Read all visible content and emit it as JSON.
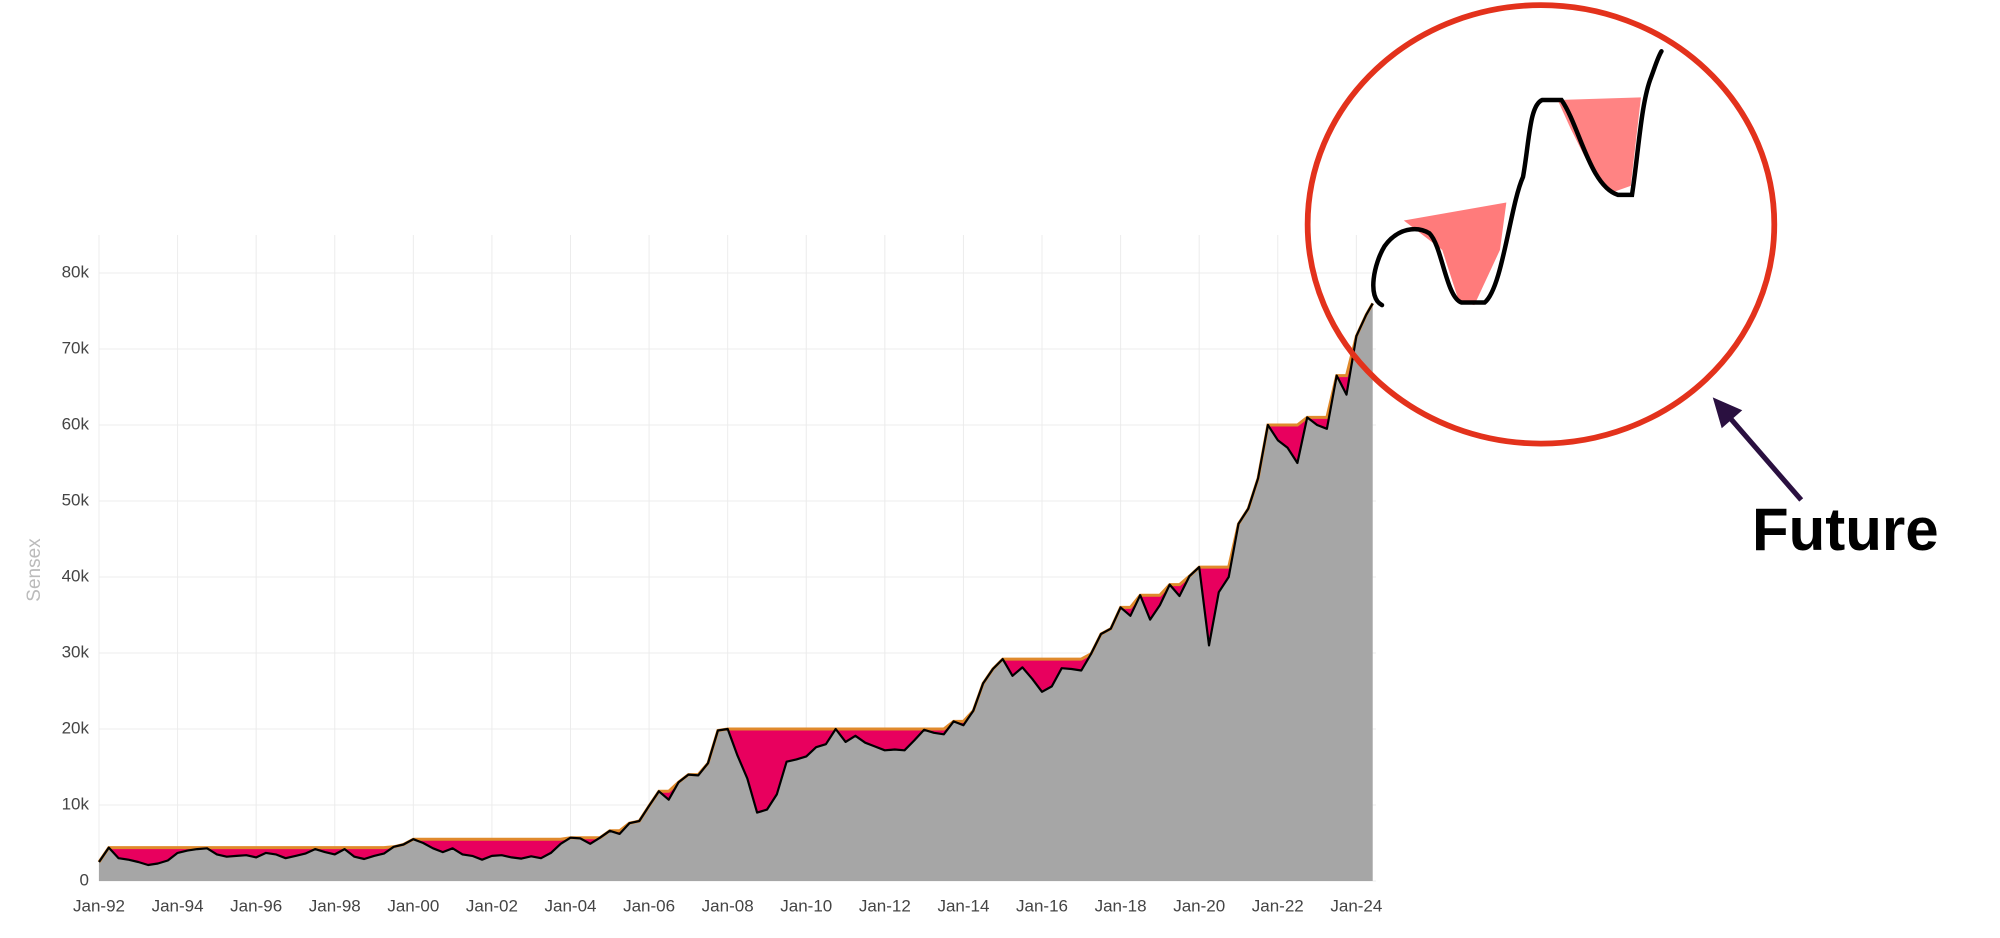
{
  "chart_data": {
    "type": "drawdown-area",
    "ylabel": "Sensex",
    "annotation": "Future",
    "x": [
      "1992-01",
      "1992-04",
      "1992-07",
      "1992-10",
      "1993-01",
      "1993-04",
      "1993-07",
      "1993-10",
      "1994-01",
      "1994-04",
      "1994-07",
      "1994-10",
      "1995-01",
      "1995-04",
      "1995-07",
      "1995-10",
      "1996-01",
      "1996-04",
      "1996-07",
      "1996-10",
      "1997-01",
      "1997-04",
      "1997-07",
      "1997-10",
      "1998-01",
      "1998-04",
      "1998-07",
      "1998-10",
      "1999-01",
      "1999-04",
      "1999-07",
      "1999-10",
      "2000-01",
      "2000-04",
      "2000-07",
      "2000-10",
      "2001-01",
      "2001-04",
      "2001-07",
      "2001-10",
      "2002-01",
      "2002-04",
      "2002-07",
      "2002-10",
      "2003-01",
      "2003-04",
      "2003-07",
      "2003-10",
      "2004-01",
      "2004-04",
      "2004-07",
      "2004-10",
      "2005-01",
      "2005-04",
      "2005-07",
      "2005-10",
      "2006-01",
      "2006-04",
      "2006-07",
      "2006-10",
      "2007-01",
      "2007-04",
      "2007-07",
      "2007-10",
      "2008-01",
      "2008-04",
      "2008-07",
      "2008-10",
      "2009-01",
      "2009-04",
      "2009-07",
      "2009-10",
      "2010-01",
      "2010-04",
      "2010-07",
      "2010-10",
      "2011-01",
      "2011-04",
      "2011-07",
      "2011-10",
      "2012-01",
      "2012-04",
      "2012-07",
      "2012-10",
      "2013-01",
      "2013-04",
      "2013-07",
      "2013-10",
      "2014-01",
      "2014-04",
      "2014-07",
      "2014-10",
      "2015-01",
      "2015-04",
      "2015-07",
      "2015-10",
      "2016-01",
      "2016-04",
      "2016-07",
      "2016-10",
      "2017-01",
      "2017-04",
      "2017-07",
      "2017-10",
      "2018-01",
      "2018-04",
      "2018-07",
      "2018-10",
      "2019-01",
      "2019-04",
      "2019-07",
      "2019-10",
      "2020-01",
      "2020-04",
      "2020-07",
      "2020-10",
      "2021-01",
      "2021-04",
      "2021-07",
      "2021-10",
      "2022-01",
      "2022-04",
      "2022-07",
      "2022-10",
      "2023-01",
      "2023-04",
      "2023-07",
      "2023-10",
      "2024-01",
      "2024-04",
      "2024-06"
    ],
    "series": [
      {
        "color": "#000000",
        "fill": "#a6a6a6",
        "values": [
          2500,
          4400,
          3000,
          2800,
          2500,
          2100,
          2300,
          2700,
          3700,
          4000,
          4200,
          4300,
          3500,
          3200,
          3300,
          3400,
          3100,
          3700,
          3500,
          3000,
          3300,
          3600,
          4200,
          3800,
          3500,
          4200,
          3200,
          2900,
          3300,
          3600,
          4500,
          4800,
          5500,
          5000,
          4300,
          3800,
          4300,
          3500,
          3300,
          2800,
          3300,
          3400,
          3100,
          2950,
          3250,
          3000,
          3700,
          4900,
          5700,
          5600,
          4900,
          5700,
          6600,
          6200,
          7600,
          7900,
          9900,
          11800,
          10700,
          13000,
          14000,
          13900,
          15500,
          19800,
          20000,
          16500,
          13500,
          9000,
          9400,
          11400,
          15700,
          16000,
          16400,
          17600,
          18000,
          20000,
          18300,
          19100,
          18200,
          17700,
          17200,
          17300,
          17200,
          18500,
          19900,
          19500,
          19300,
          21000,
          20500,
          22400,
          26000,
          27900,
          29200,
          27000,
          28100,
          26600,
          24900,
          25600,
          28000,
          27900,
          27700,
          29900,
          32500,
          33200,
          36000,
          34900,
          37600,
          34400,
          36300,
          39000,
          37500,
          40100,
          41300,
          31000,
          38000,
          40000,
          47000,
          49000,
          53000,
          60000,
          58000,
          57000,
          55000,
          61000,
          60000,
          59500,
          66500,
          64000,
          71700,
          74500,
          76000
        ]
      },
      {
        "color": "#e08a2c",
        "fill": "#e8005e",
        "values": [
          2500,
          4400,
          4400,
          4400,
          4400,
          4400,
          4400,
          4400,
          4400,
          4400,
          4400,
          4400,
          4400,
          4400,
          4400,
          4400,
          4400,
          4400,
          4400,
          4400,
          4400,
          4400,
          4400,
          4400,
          4400,
          4400,
          4400,
          4400,
          4400,
          4400,
          4500,
          4800,
          5500,
          5500,
          5500,
          5500,
          5500,
          5500,
          5500,
          5500,
          5500,
          5500,
          5500,
          5500,
          5500,
          5500,
          5500,
          5500,
          5700,
          5700,
          5700,
          5700,
          6600,
          6600,
          7600,
          7900,
          9900,
          11800,
          11800,
          13000,
          14000,
          14000,
          15500,
          19800,
          20000,
          20000,
          20000,
          20000,
          20000,
          20000,
          20000,
          20000,
          20000,
          20000,
          20000,
          20000,
          20000,
          20000,
          20000,
          20000,
          20000,
          20000,
          20000,
          20000,
          20000,
          20000,
          20000,
          21000,
          21000,
          22400,
          26000,
          27900,
          29200,
          29200,
          29200,
          29200,
          29200,
          29200,
          29200,
          29200,
          29200,
          29900,
          32500,
          33200,
          36000,
          36000,
          37600,
          37600,
          37600,
          39000,
          39000,
          40100,
          41300,
          41300,
          41300,
          41300,
          47000,
          49000,
          53000,
          60000,
          60000,
          60000,
          60000,
          61000,
          61000,
          61000,
          66500,
          66500,
          71700,
          74500,
          76000
        ]
      }
    ],
    "xlim": [
      "1992-01",
      "2024-07"
    ],
    "xticks": [
      {
        "value": "1992-01",
        "label": "Jan-92"
      },
      {
        "value": "1994-01",
        "label": "Jan-94"
      },
      {
        "value": "1996-01",
        "label": "Jan-96"
      },
      {
        "value": "1998-01",
        "label": "Jan-98"
      },
      {
        "value": "2000-01",
        "label": "Jan-00"
      },
      {
        "value": "2002-01",
        "label": "Jan-02"
      },
      {
        "value": "2004-01",
        "label": "Jan-04"
      },
      {
        "value": "2006-01",
        "label": "Jan-06"
      },
      {
        "value": "2008-01",
        "label": "Jan-08"
      },
      {
        "value": "2010-01",
        "label": "Jan-10"
      },
      {
        "value": "2012-01",
        "label": "Jan-12"
      },
      {
        "value": "2014-01",
        "label": "Jan-14"
      },
      {
        "value": "2016-01",
        "label": "Jan-16"
      },
      {
        "value": "2018-01",
        "label": "Jan-18"
      },
      {
        "value": "2020-01",
        "label": "Jan-20"
      },
      {
        "value": "2022-01",
        "label": "Jan-22"
      },
      {
        "value": "2024-01",
        "label": "Jan-24"
      }
    ],
    "ylim": [
      0,
      85000
    ],
    "yticks": [
      0,
      {
        "value": 10000,
        "label": "10k"
      },
      {
        "value": 20000,
        "label": "20k"
      },
      {
        "value": 30000,
        "label": "30k"
      },
      {
        "value": 40000,
        "label": "40k"
      },
      {
        "value": 50000,
        "label": "50k"
      },
      {
        "value": 60000,
        "label": "60k"
      },
      {
        "value": 70000,
        "label": "70k"
      },
      {
        "value": 80000,
        "label": "80k"
      }
    ],
    "grid": true
  }
}
